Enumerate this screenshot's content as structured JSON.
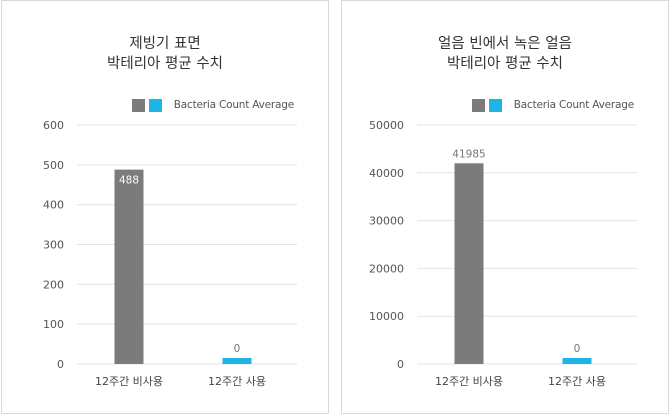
{
  "chart_data": [
    {
      "type": "bar",
      "title_lines": [
        "제빙기 표면",
        "박테리아 평균 수치"
      ],
      "legend": {
        "label": "Bacteria Count Average",
        "swatch_colors": [
          "#7b7b7b",
          "#1fb4e6"
        ],
        "placement": "top-right"
      },
      "categories": [
        "12주간 비사용",
        "12주간 사용"
      ],
      "values": [
        488,
        0
      ],
      "value_labels": [
        "488",
        "0"
      ],
      "bar_colors": [
        "#7b7b7b",
        "#1fb4e6"
      ],
      "yticks": [
        0,
        100,
        200,
        300,
        400,
        500,
        600
      ],
      "ylim": [
        0,
        600
      ],
      "grid": true
    },
    {
      "type": "bar",
      "title_lines": [
        "얼음 빈에서 녹은 얼음",
        "박테리아 평균 수치"
      ],
      "legend": {
        "label": "Bacteria Count Average",
        "swatch_colors": [
          "#7b7b7b",
          "#1fb4e6"
        ],
        "placement": "top-right"
      },
      "categories": [
        "12주간 비사용",
        "12주간 사용"
      ],
      "values": [
        41985,
        0
      ],
      "value_labels": [
        "41985",
        "0"
      ],
      "bar_colors": [
        "#7b7b7b",
        "#1fb4e6"
      ],
      "yticks": [
        0,
        10000,
        20000,
        30000,
        40000,
        50000
      ],
      "ylim": [
        0,
        50000
      ],
      "grid": true
    }
  ]
}
